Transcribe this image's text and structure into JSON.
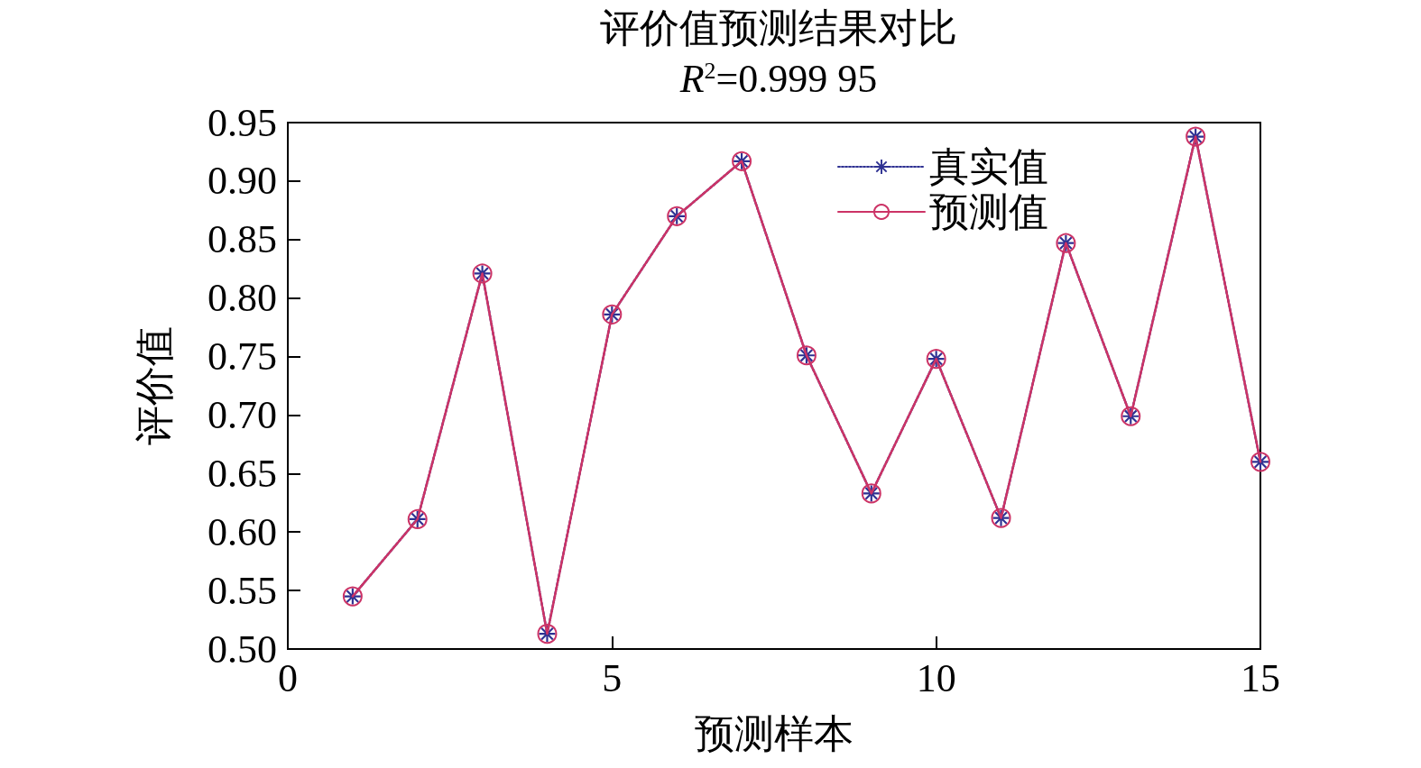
{
  "chart_data": {
    "type": "line",
    "title": "评价值预测结果对比",
    "subtitle": "R$^{2}$=0.999 95",
    "xlabel": "预测样本",
    "ylabel": "评价值",
    "x": [
      1,
      2,
      3,
      4,
      5,
      6,
      7,
      8,
      9,
      10,
      11,
      12,
      13,
      14,
      15
    ],
    "series": [
      {
        "name": "真实值",
        "color": "#2e3192",
        "marker": "star",
        "line_style": "dotted",
        "values": [
          0.545,
          0.611,
          0.821,
          0.513,
          0.786,
          0.87,
          0.917,
          0.751,
          0.633,
          0.748,
          0.612,
          0.847,
          0.699,
          0.938,
          0.66
        ]
      },
      {
        "name": "预测值",
        "color": "#cc3366",
        "marker": "circle",
        "line_style": "solid",
        "values": [
          0.545,
          0.611,
          0.821,
          0.513,
          0.786,
          0.87,
          0.917,
          0.751,
          0.633,
          0.748,
          0.612,
          0.847,
          0.699,
          0.938,
          0.66
        ]
      }
    ],
    "xlim": [
      0,
      15
    ],
    "xticks": [
      0,
      5,
      10,
      15
    ],
    "ylim": [
      0.5,
      0.95
    ],
    "yticks": [
      {
        "value": 0.5,
        "label": "0.50"
      },
      0.55,
      {
        "value": 0.6,
        "label": "0.60"
      },
      0.65,
      {
        "value": 0.7,
        "label": "0.70"
      },
      0.75,
      {
        "value": 0.8,
        "label": "0.80"
      },
      0.85,
      {
        "value": 0.9,
        "label": "0.90"
      },
      0.95
    ],
    "legend": "top right"
  }
}
